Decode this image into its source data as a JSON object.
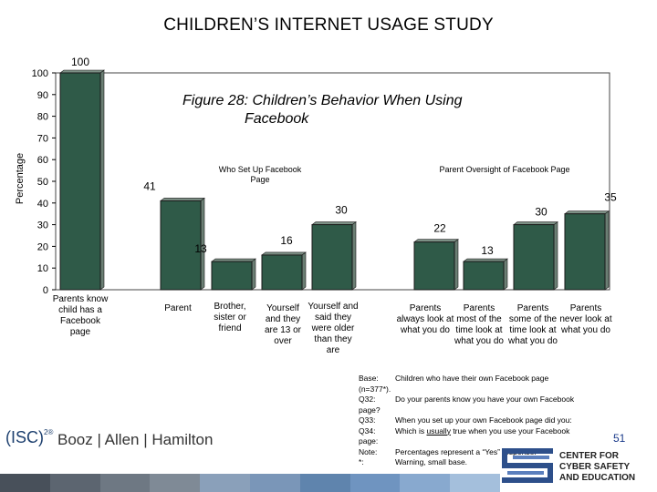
{
  "header": {
    "title": "CHILDREN’S INTERNET USAGE STUDY"
  },
  "figure": {
    "label": "Figure 28",
    "title_line1": ": Children’s Behavior When Using",
    "title_line2": "Facebook"
  },
  "chart_data": {
    "type": "bar",
    "ylabel": "Percentage",
    "ylim": [
      0,
      100
    ],
    "yticks": [
      0,
      10,
      20,
      30,
      40,
      50,
      60,
      70,
      80,
      90,
      100
    ],
    "grid": false,
    "categories": [
      "Parents know child has a Facebook page",
      "Parent",
      "Brother, sister or friend",
      "Yourself and they are 13 or over",
      "Yourself and said they were older than they are",
      "Parents always look at what you do",
      "Parents most of the time look at what you do",
      "Parents some of the time look at what you do",
      "Parents never look at what you do"
    ],
    "values": [
      100,
      41,
      13,
      16,
      30,
      22,
      13,
      30,
      35
    ],
    "data_labels": [
      "100",
      "41",
      "13",
      "16",
      "30",
      "22",
      "13",
      "30",
      "35"
    ],
    "groups": [
      {
        "name": "Who Set Up Facebook Page"
      },
      {
        "name": "Parent Oversight of Facebook Page"
      }
    ],
    "bar_color": "#2f5a48",
    "bar_edge_color": "#1a1a1a"
  },
  "notes": {
    "base_key": "Base:",
    "base_key2": "(n=377*).",
    "base_val": "Children who have their own Facebook page",
    "q32_key": "Q32:",
    "q32_key2": "page?",
    "q32_val": "Do your parents know you have your own Facebook",
    "q33_key": "Q33:",
    "q33_val": "When you set up your own Facebook page did you:",
    "q34_key": "Q34:",
    "q34_key2": "page:",
    "q34_val_pre": "Which is ",
    "q34_val_em": "usually",
    "q34_val_post": " true when you use your Facebook",
    "note_key": "Note:",
    "note_key2": "*:",
    "note_val": "Percentages represent a “Yes” response.",
    "note_val2": "Warning, small base."
  },
  "footer": {
    "isc": "(ISC)",
    "isc_sup": "2®",
    "booz": "Booz | Allen | Hamilton",
    "page_number": "51",
    "cyber_line1": "CENTER FOR",
    "cyber_line2": "CYBER SAFETY",
    "cyber_line3": "AND EDUCATION",
    "strip_colors": [
      "#48505a",
      "#5c6570",
      "#6e7883",
      "#7f8a96",
      "#8aa0ba",
      "#7a96b8",
      "#5f84ad",
      "#6f94c0",
      "#88a9cf",
      "#a4bfdc"
    ]
  }
}
